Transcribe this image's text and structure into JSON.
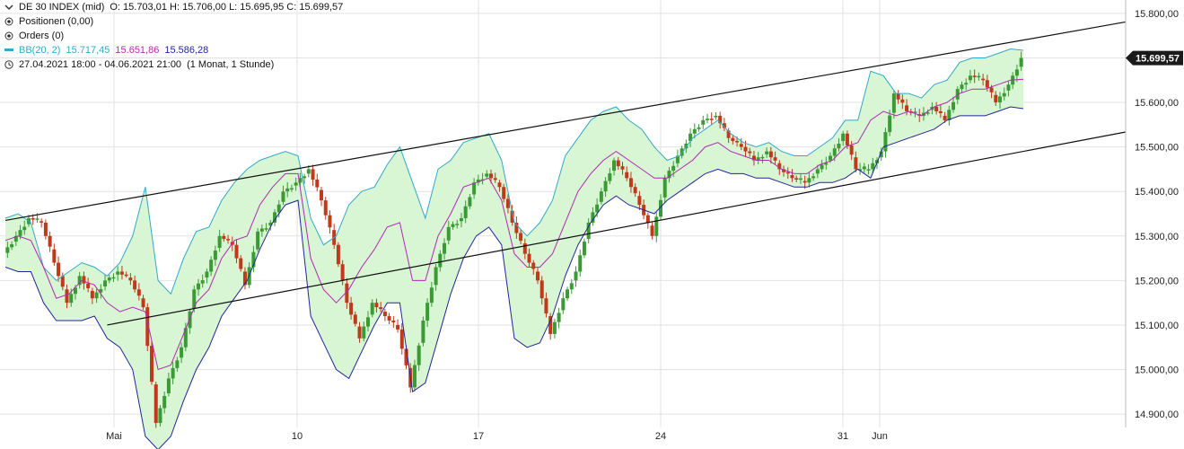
{
  "header": {
    "instrument": "DE 30 INDEX (mid)",
    "ohlc": "O: 15.703,01  H: 15.706,00  L: 15.695,95  C: 15.699,57",
    "positions": "Positionen (0,00)",
    "orders": "Orders (0)",
    "bb_label": "BB(20, 2)",
    "bb_upper": "15.717,45",
    "bb_middle": "15.651,86",
    "bb_lower": "15.586,28",
    "range": "27.04.2021 18:00 - 04.06.2021 21:00",
    "period": "(1 Monat, 1 Stunde)"
  },
  "colors": {
    "up": "#3a9a34",
    "down": "#c0391b",
    "bb_upper": "#31a9c9",
    "bb_middle": "#b02ab0",
    "bb_lower": "#22259a",
    "bb_fill": "#d8f5d4",
    "trend": "#111111",
    "last_tag": "#1a1a1a",
    "grid": "#e2e2e2"
  },
  "chart_data": {
    "type": "candlestick",
    "title": "DE 30 INDEX (mid)",
    "ylim": [
      14870,
      15830
    ],
    "y_ticks": [
      "15.800,00",
      "15.700,00",
      "15.600,00",
      "15.500,00",
      "15.400,00",
      "15.300,00",
      "15.200,00",
      "15.100,00",
      "15.000,00",
      "14.900,00"
    ],
    "y_tick_values": [
      15800,
      15700,
      15600,
      15500,
      15400,
      15300,
      15200,
      15100,
      15000,
      14900
    ],
    "x_ticks": [
      "Mai",
      "10",
      "17",
      "24",
      "31",
      "Jun"
    ],
    "last_price": "15.699,57",
    "last_price_value": 15699.57,
    "close_series": [
      15262,
      15300,
      15340,
      15330,
      15240,
      15150,
      15210,
      15160,
      15200,
      15220,
      15200,
      15140,
      14880,
      14980,
      15050,
      15180,
      15220,
      15300,
      15280,
      15190,
      15310,
      15330,
      15400,
      15420,
      15450,
      15380,
      15280,
      15150,
      15070,
      15150,
      15120,
      15090,
      14960,
      15110,
      15230,
      15320,
      15340,
      15420,
      15440,
      15410,
      15330,
      15260,
      15200,
      15080,
      15160,
      15220,
      15330,
      15400,
      15470,
      15430,
      15370,
      15300,
      15430,
      15480,
      15530,
      15560,
      15570,
      15520,
      15500,
      15470,
      15490,
      15450,
      15430,
      15420,
      15450,
      15480,
      15530,
      15450,
      15450,
      15490,
      15620,
      15580,
      15570,
      15590,
      15560,
      15630,
      15660,
      15650,
      15600,
      15640,
      15700
    ],
    "bb_upper_series": [
      15340,
      15350,
      15330,
      15230,
      15200,
      15220,
      15240,
      15230,
      15210,
      15240,
      15300,
      15410,
      15200,
      15170,
      15250,
      15310,
      15320,
      15380,
      15420,
      15450,
      15470,
      15480,
      15490,
      15480,
      15340,
      15280,
      15300,
      15370,
      15400,
      15410,
      15460,
      15500,
      15420,
      15340,
      15450,
      15470,
      15510,
      15520,
      15530,
      15470,
      15330,
      15300,
      15330,
      15380,
      15480,
      15520,
      15560,
      15580,
      15590,
      15560,
      15540,
      15500,
      15470,
      15480,
      15520,
      15540,
      15560,
      15530,
      15510,
      15500,
      15510,
      15490,
      15480,
      15480,
      15500,
      15520,
      15560,
      15560,
      15670,
      15660,
      15620,
      15620,
      15610,
      15640,
      15650,
      15690,
      15700,
      15700,
      15710,
      15720,
      15717
    ],
    "bb_middle_series": [
      15290,
      15300,
      15290,
      15230,
      15160,
      15170,
      15200,
      15190,
      15150,
      15130,
      15140,
      15130,
      15000,
      15010,
      15080,
      15150,
      15180,
      15250,
      15290,
      15300,
      15370,
      15410,
      15440,
      15440,
      15250,
      15180,
      15150,
      15180,
      15230,
      15270,
      15320,
      15330,
      15200,
      15200,
      15300,
      15350,
      15410,
      15420,
      15430,
      15380,
      15260,
      15230,
      15230,
      15260,
      15330,
      15400,
      15440,
      15470,
      15490,
      15470,
      15450,
      15430,
      15430,
      15450,
      15470,
      15500,
      15510,
      15490,
      15480,
      15470,
      15470,
      15450,
      15440,
      15440,
      15460,
      15470,
      15500,
      15510,
      15560,
      15580,
      15570,
      15580,
      15570,
      15590,
      15600,
      15620,
      15630,
      15630,
      15640,
      15650,
      15652
    ],
    "bb_lower_series": [
      15230,
      15220,
      15220,
      15150,
      15110,
      15110,
      15110,
      15120,
      15070,
      15050,
      15000,
      14850,
      14820,
      14850,
      14930,
      15000,
      15050,
      15120,
      15160,
      15200,
      15270,
      15330,
      15370,
      15380,
      15120,
      15060,
      15000,
      14980,
      15040,
      15100,
      15150,
      15150,
      14950,
      14970,
      15070,
      15170,
      15250,
      15300,
      15320,
      15280,
      15070,
      15050,
      15060,
      15120,
      15210,
      15280,
      15330,
      15370,
      15390,
      15370,
      15360,
      15350,
      15380,
      15400,
      15420,
      15440,
      15450,
      15440,
      15440,
      15430,
      15430,
      15420,
      15410,
      15410,
      15420,
      15420,
      15430,
      15450,
      15430,
      15500,
      15510,
      15520,
      15530,
      15540,
      15560,
      15570,
      15570,
      15570,
      15580,
      15590,
      15586
    ],
    "trend_lines": [
      {
        "from": [
          0,
          15335
        ],
        "to": [
          80,
          15740
        ]
      },
      {
        "from": [
          8,
          15100
        ],
        "to": [
          80,
          15490
        ]
      }
    ]
  }
}
